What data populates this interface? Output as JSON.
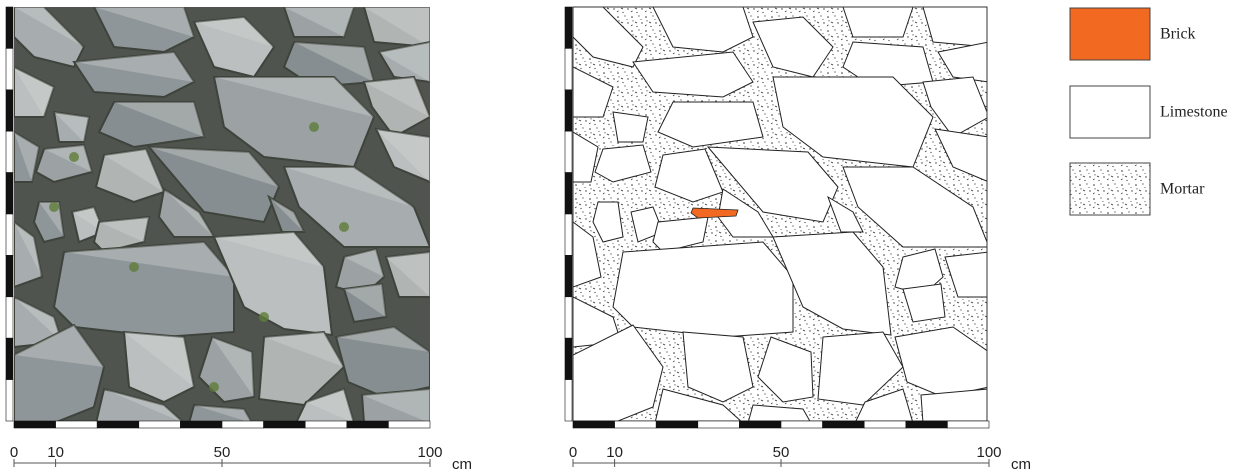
{
  "legend": [
    {
      "label": "Brick",
      "color": "#f26a21"
    },
    {
      "label": "Limestone",
      "color": "#ffffff"
    },
    {
      "label": "Mortar"
    }
  ],
  "scales": [
    {
      "ticks": [
        0,
        10,
        50,
        100
      ],
      "unit": "cm"
    },
    {
      "ticks": [
        0,
        10,
        50,
        100
      ],
      "unit": "cm"
    }
  ]
}
